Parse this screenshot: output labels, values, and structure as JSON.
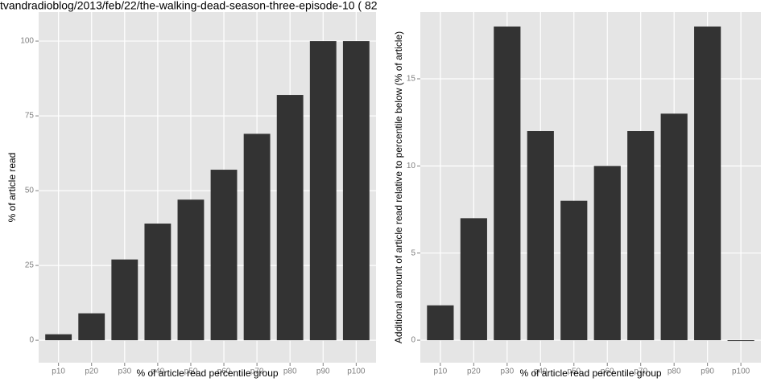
{
  "chart_data": [
    {
      "type": "bar",
      "title": "tvandradioblog/2013/feb/22/the-walking-dead-season-three-episode-10 ( 82",
      "x_label": "% of article read percentile group",
      "y_label": "% of article read",
      "categories": [
        "p10",
        "p20",
        "p30",
        "p40",
        "p50",
        "p60",
        "p70",
        "p80",
        "p90",
        "p100"
      ],
      "values": [
        2,
        9,
        27,
        39,
        47,
        57,
        69,
        82,
        100,
        100
      ],
      "color": "#333333",
      "ylim": [
        -7.5,
        109.7
      ],
      "yticks": [
        0,
        25,
        50,
        75,
        100
      ],
      "grid": true
    },
    {
      "type": "bar",
      "x_label": "% of article read percentile group",
      "y_label": "Additional amount of article read relative to percentile below (% of article)",
      "categories": [
        "p10",
        "p20",
        "p30",
        "p40",
        "p50",
        "p60",
        "p70",
        "p80",
        "p90",
        "p100"
      ],
      "values": [
        2,
        7,
        18,
        12,
        8,
        10,
        12,
        13,
        18,
        0
      ],
      "color": "#333333",
      "ylim": [
        -1.29,
        18.83
      ],
      "yticks": [
        0,
        5,
        10,
        15
      ],
      "grid": true
    }
  ]
}
